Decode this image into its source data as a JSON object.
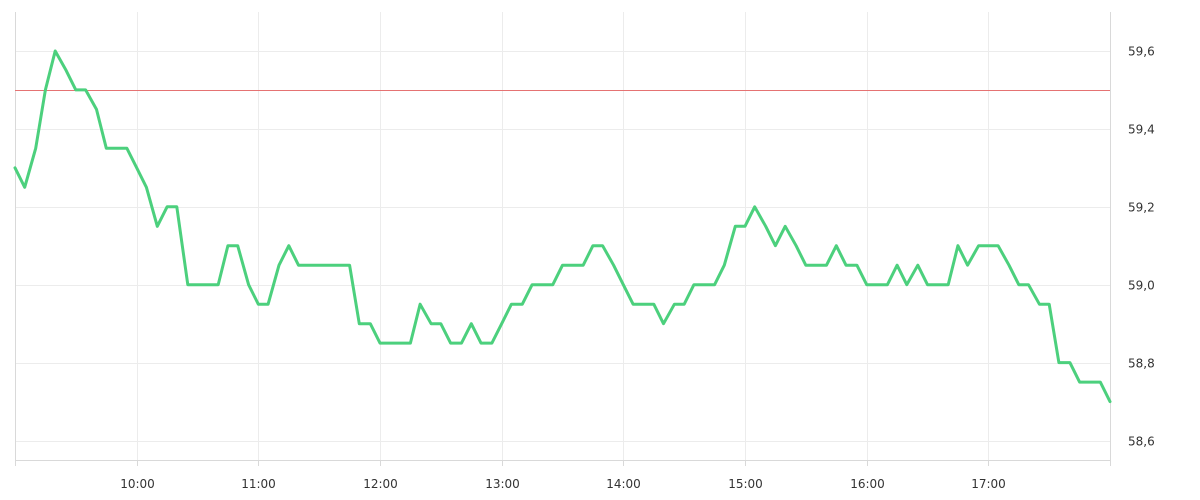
{
  "chart_data": {
    "type": "line",
    "title": "",
    "xlabel": "",
    "ylabel": "",
    "x_ticks": [
      "10:00",
      "11:00",
      "12:00",
      "13:00",
      "14:00",
      "15:00",
      "16:00",
      "17:00"
    ],
    "x_tick_hours": [
      10,
      11,
      12,
      13,
      14,
      15,
      16,
      17
    ],
    "xlim_hours": [
      9.0,
      18.0
    ],
    "y_ticks": [
      "59,6",
      "59,4",
      "59,2",
      "59,0",
      "58,8",
      "58,6"
    ],
    "y_tick_values": [
      59.6,
      59.4,
      59.2,
      59.0,
      58.8,
      58.6
    ],
    "ylim": [
      58.55,
      59.7
    ],
    "y_axis_position": "right",
    "grid": true,
    "reference_line": {
      "value": 59.5,
      "color": "#e57373"
    },
    "series": [
      {
        "color": "#4cd07d",
        "x_hours": [
          9.0,
          9.08,
          9.17,
          9.25,
          9.33,
          9.42,
          9.5,
          9.58,
          9.67,
          9.75,
          9.83,
          9.92,
          10.0,
          10.08,
          10.17,
          10.25,
          10.33,
          10.42,
          10.5,
          10.58,
          10.67,
          10.75,
          10.83,
          10.92,
          11.0,
          11.08,
          11.17,
          11.25,
          11.33,
          11.42,
          11.5,
          11.58,
          11.67,
          11.75,
          11.83,
          11.92,
          12.0,
          12.08,
          12.17,
          12.25,
          12.33,
          12.42,
          12.5,
          12.58,
          12.67,
          12.75,
          12.83,
          12.92,
          13.0,
          13.08,
          13.17,
          13.25,
          13.33,
          13.42,
          13.5,
          13.58,
          13.67,
          13.75,
          13.83,
          13.92,
          14.0,
          14.08,
          14.17,
          14.25,
          14.33,
          14.42,
          14.5,
          14.58,
          14.67,
          14.75,
          14.83,
          14.92,
          15.0,
          15.08,
          15.17,
          15.25,
          15.33,
          15.42,
          15.5,
          15.58,
          15.67,
          15.75,
          15.83,
          15.92,
          16.0,
          16.08,
          16.17,
          16.25,
          16.33,
          16.42,
          16.5,
          16.58,
          16.67,
          16.75,
          16.83,
          16.92,
          17.0,
          17.08,
          17.17,
          17.25,
          17.33,
          17.42,
          17.5,
          17.58,
          17.67,
          17.75,
          17.83,
          17.92,
          18.0
        ],
        "values": [
          59.3,
          59.25,
          59.35,
          59.5,
          59.6,
          59.55,
          59.5,
          59.5,
          59.45,
          59.35,
          59.35,
          59.35,
          59.3,
          59.25,
          59.15,
          59.2,
          59.2,
          59.0,
          59.0,
          59.0,
          59.0,
          59.1,
          59.1,
          59.0,
          58.95,
          58.95,
          59.05,
          59.1,
          59.05,
          59.05,
          59.05,
          59.05,
          59.05,
          59.05,
          58.9,
          58.9,
          58.85,
          58.85,
          58.85,
          58.85,
          58.95,
          58.9,
          58.9,
          58.85,
          58.85,
          58.9,
          58.85,
          58.85,
          58.9,
          58.95,
          58.95,
          59.0,
          59.0,
          59.0,
          59.05,
          59.05,
          59.05,
          59.1,
          59.1,
          59.05,
          59.0,
          58.95,
          58.95,
          58.95,
          58.9,
          58.95,
          58.95,
          59.0,
          59.0,
          59.0,
          59.05,
          59.15,
          59.15,
          59.2,
          59.15,
          59.1,
          59.15,
          59.1,
          59.05,
          59.05,
          59.05,
          59.1,
          59.05,
          59.05,
          59.0,
          59.0,
          59.0,
          59.05,
          59.0,
          59.05,
          59.0,
          59.0,
          59.0,
          59.1,
          59.05,
          59.1,
          59.1,
          59.1,
          59.05,
          59.0,
          59.0,
          58.95,
          58.95,
          58.8,
          58.8,
          58.75,
          58.75,
          58.75,
          58.7
        ]
      }
    ]
  }
}
